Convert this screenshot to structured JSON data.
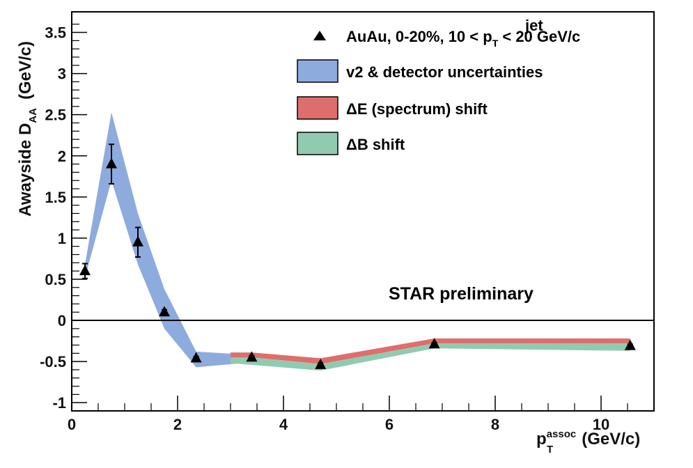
{
  "chart_data": {
    "type": "scatter",
    "xlabel": {
      "main": "p",
      "sub": "T",
      "sup": "assoc",
      "unit": "(GeV/c)"
    },
    "ylabel": {
      "main": "Awayside D",
      "sub": "AA",
      "unit": "(GeV/c)"
    },
    "xlim": [
      0,
      11
    ],
    "ylim": [
      -1.1,
      3.75
    ],
    "x_ticks": [
      0,
      2,
      4,
      6,
      8,
      10
    ],
    "x_tick_labels": [
      "0",
      "2",
      "4",
      "6",
      "8",
      "10"
    ],
    "y_ticks": [
      -1,
      -0.5,
      0,
      0.5,
      1,
      1.5,
      2,
      2.5,
      3,
      3.5
    ],
    "y_tick_labels": [
      "-1",
      "-0.5",
      "0",
      "0.5",
      "1",
      "1.5",
      "2",
      "2.5",
      "3",
      "3.5"
    ],
    "zero_line": true,
    "grid": false,
    "series": [
      {
        "name": "AuAu, 0-20%, 10 < p_T^jet < 20 GeV/c",
        "marker": "triangle",
        "color": "#000000",
        "points": [
          {
            "x": 0.25,
            "y": 0.6,
            "err": 0.09
          },
          {
            "x": 0.75,
            "y": 1.9,
            "err": 0.24
          },
          {
            "x": 1.25,
            "y": 0.95,
            "err": 0.18
          },
          {
            "x": 1.75,
            "y": 0.1,
            "err": 0.03
          },
          {
            "x": 2.35,
            "y": -0.46,
            "err": 0.02
          },
          {
            "x": 3.4,
            "y": -0.45,
            "err": 0.02
          },
          {
            "x": 4.7,
            "y": -0.54,
            "err": 0.02
          },
          {
            "x": 6.85,
            "y": -0.29,
            "err": 0.02
          },
          {
            "x": 10.55,
            "y": -0.31,
            "err": 0.02
          }
        ]
      }
    ],
    "bands": [
      {
        "name": "v2 & detector uncertainties",
        "color": "#8eabde",
        "x": [
          0.25,
          0.75,
          1.25,
          1.75,
          2.35,
          3.4
        ],
        "upper": [
          0.68,
          2.53,
          1.3,
          0.38,
          -0.38,
          -0.42
        ],
        "lower": [
          0.52,
          1.7,
          0.68,
          -0.1,
          -0.57,
          -0.51
        ]
      },
      {
        "name": "ΔE (spectrum) shift",
        "color": "#de6e6c",
        "x": [
          3.0,
          3.4,
          4.7,
          6.85,
          10.55
        ],
        "upper": [
          -0.39,
          -0.39,
          -0.46,
          -0.22,
          -0.22
        ],
        "lower": [
          -0.45,
          -0.45,
          -0.53,
          -0.28,
          -0.28
        ]
      },
      {
        "name": "ΔB shift",
        "color": "#90cbb0",
        "x": [
          3.0,
          3.4,
          4.7,
          6.85,
          10.55
        ],
        "upper": [
          -0.45,
          -0.45,
          -0.53,
          -0.28,
          -0.28
        ],
        "lower": [
          -0.52,
          -0.54,
          -0.61,
          -0.34,
          -0.37
        ]
      }
    ],
    "legend": {
      "placement": "top-right",
      "entries": [
        {
          "kind": "marker",
          "text": {
            "pre": "AuAu, 0-20%, 10 < p",
            "sub": "T",
            "sup": "jet",
            "post": " < 20 GeV/c"
          }
        },
        {
          "kind": "band",
          "color": "#8eabde",
          "text": "v2 & detector uncertainties"
        },
        {
          "kind": "band",
          "color": "#de6e6c",
          "text": "ΔE (spectrum) shift"
        },
        {
          "kind": "band",
          "color": "#90cbb0",
          "text": "ΔB shift"
        }
      ]
    },
    "annotation": "STAR preliminary"
  }
}
